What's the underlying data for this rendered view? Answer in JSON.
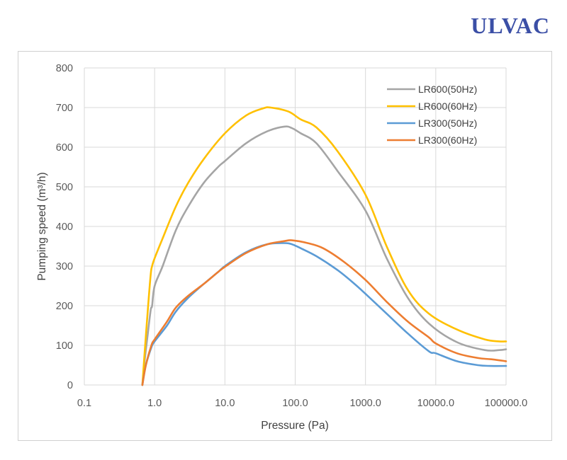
{
  "brand": {
    "logo_text": "ULVAC",
    "color": "#3b4fa6"
  },
  "chart_data": {
    "type": "line",
    "title": "",
    "xlabel": "Pressure (Pa)",
    "ylabel": "Pumping speed (m³/h)",
    "x_scale": "log",
    "xlim": [
      0.1,
      100000
    ],
    "ylim": [
      0,
      800
    ],
    "x_ticks": [
      0.1,
      1,
      10,
      100,
      1000,
      10000,
      100000
    ],
    "x_tick_labels": [
      "0.1",
      "1.0",
      "10.0",
      "100.0",
      "1000.0",
      "10000.0",
      "100000.0"
    ],
    "y_ticks": [
      0,
      100,
      200,
      300,
      400,
      500,
      600,
      700,
      800
    ],
    "y_tick_labels": [
      "0",
      "100",
      "200",
      "300",
      "400",
      "500",
      "600",
      "700",
      "800"
    ],
    "grid": true,
    "legend_position": "top-right",
    "series": [
      {
        "name": "LR600(50Hz)",
        "color": "#a5a5a5",
        "points": [
          [
            0.67,
            0
          ],
          [
            0.72,
            60
          ],
          [
            0.8,
            130
          ],
          [
            0.88,
            190
          ],
          [
            0.92,
            200
          ],
          [
            1,
            250
          ],
          [
            1.3,
            300
          ],
          [
            2,
            390
          ],
          [
            3,
            450
          ],
          [
            5,
            510
          ],
          [
            8,
            550
          ],
          [
            10,
            565
          ],
          [
            20,
            610
          ],
          [
            40,
            640
          ],
          [
            70,
            652
          ],
          [
            90,
            648
          ],
          [
            120,
            635
          ],
          [
            200,
            610
          ],
          [
            400,
            540
          ],
          [
            1000,
            440
          ],
          [
            2000,
            320
          ],
          [
            4000,
            220
          ],
          [
            8000,
            155
          ],
          [
            20000,
            108
          ],
          [
            50000,
            88
          ],
          [
            80000,
            88
          ],
          [
            100000,
            90
          ]
        ]
      },
      {
        "name": "LR600(60Hz)",
        "color": "#ffc000",
        "points": [
          [
            0.67,
            0
          ],
          [
            0.72,
            80
          ],
          [
            0.8,
            190
          ],
          [
            0.88,
            280
          ],
          [
            0.92,
            300
          ],
          [
            1,
            320
          ],
          [
            1.3,
            370
          ],
          [
            2,
            450
          ],
          [
            3,
            510
          ],
          [
            5,
            570
          ],
          [
            10,
            635
          ],
          [
            20,
            680
          ],
          [
            35,
            698
          ],
          [
            45,
            700
          ],
          [
            80,
            690
          ],
          [
            120,
            670
          ],
          [
            200,
            650
          ],
          [
            400,
            590
          ],
          [
            1000,
            480
          ],
          [
            2000,
            350
          ],
          [
            4000,
            240
          ],
          [
            8000,
            180
          ],
          [
            20000,
            140
          ],
          [
            50000,
            115
          ],
          [
            80000,
            110
          ],
          [
            100000,
            110
          ]
        ]
      },
      {
        "name": "LR300(50Hz)",
        "color": "#5b9bd5",
        "points": [
          [
            0.67,
            0
          ],
          [
            0.75,
            50
          ],
          [
            0.9,
            95
          ],
          [
            1,
            110
          ],
          [
            1.5,
            150
          ],
          [
            2,
            185
          ],
          [
            3,
            220
          ],
          [
            5,
            255
          ],
          [
            8,
            285
          ],
          [
            10,
            300
          ],
          [
            20,
            335
          ],
          [
            40,
            355
          ],
          [
            70,
            358
          ],
          [
            90,
            355
          ],
          [
            120,
            345
          ],
          [
            200,
            325
          ],
          [
            400,
            290
          ],
          [
            700,
            255
          ],
          [
            1000,
            230
          ],
          [
            2000,
            180
          ],
          [
            4000,
            130
          ],
          [
            8000,
            85
          ],
          [
            10000,
            80
          ],
          [
            20000,
            60
          ],
          [
            40000,
            50
          ],
          [
            60000,
            48
          ],
          [
            100000,
            48
          ]
        ]
      },
      {
        "name": "LR300(60Hz)",
        "color": "#ed7d31",
        "points": [
          [
            0.67,
            0
          ],
          [
            0.75,
            50
          ],
          [
            0.9,
            100
          ],
          [
            1,
            115
          ],
          [
            1.5,
            160
          ],
          [
            2,
            195
          ],
          [
            3,
            225
          ],
          [
            5,
            255
          ],
          [
            8,
            285
          ],
          [
            10,
            298
          ],
          [
            20,
            333
          ],
          [
            40,
            355
          ],
          [
            70,
            363
          ],
          [
            90,
            365
          ],
          [
            150,
            358
          ],
          [
            250,
            345
          ],
          [
            500,
            310
          ],
          [
            1000,
            265
          ],
          [
            2000,
            210
          ],
          [
            4000,
            160
          ],
          [
            8000,
            120
          ],
          [
            10000,
            105
          ],
          [
            20000,
            80
          ],
          [
            40000,
            68
          ],
          [
            60000,
            65
          ],
          [
            100000,
            60
          ]
        ]
      }
    ]
  }
}
